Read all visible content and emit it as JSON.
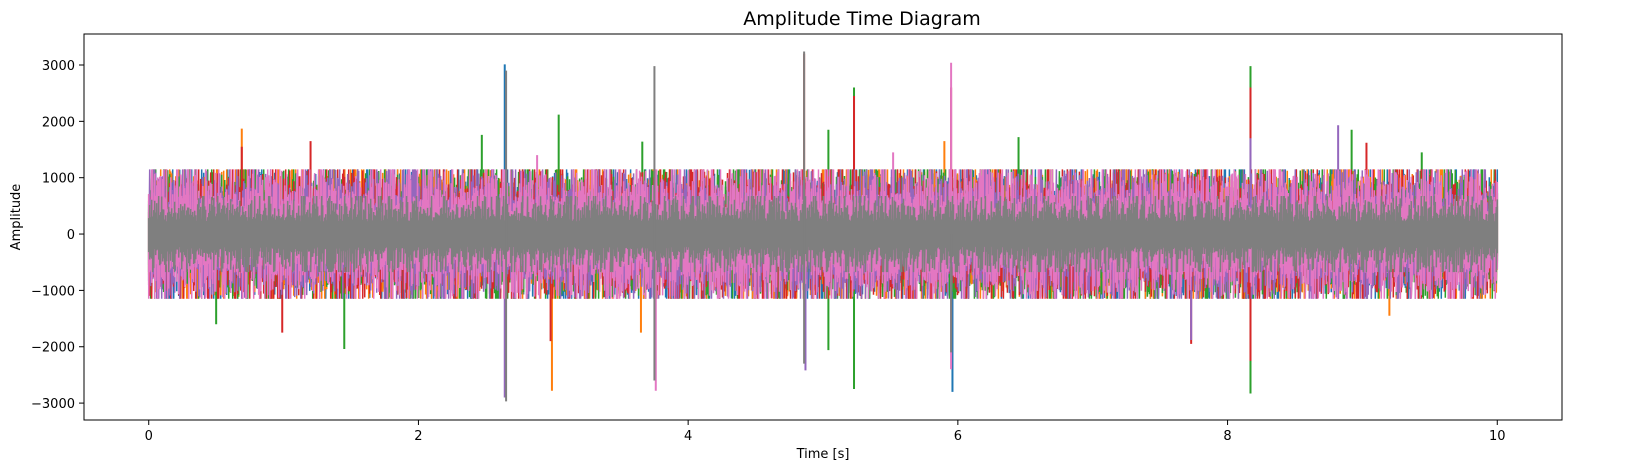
{
  "chart_data": {
    "type": "line",
    "title": "Amplitude Time Diagram",
    "xlabel": "Time [s]",
    "ylabel": "Amplitude",
    "xlim": [
      -0.48,
      10.48
    ],
    "ylim": [
      -3300,
      3550
    ],
    "xticks": [
      0,
      2,
      4,
      6,
      8,
      10
    ],
    "xtick_labels": [
      "0",
      "2",
      "4",
      "6",
      "8",
      "10"
    ],
    "yticks": [
      -3000,
      -2000,
      -1000,
      0,
      1000,
      2000,
      3000
    ],
    "ytick_labels": [
      "−3000",
      "−2000",
      "−1000",
      "0",
      "1000",
      "2000",
      "3000"
    ],
    "grid": false,
    "legend": "none",
    "x_range": [
      0,
      10
    ],
    "envelope": {
      "typical_positive_peak": 850,
      "typical_negative_peak": -850,
      "dense_core": 500
    },
    "series": [
      {
        "color": "#1f77b4",
        "spikes": [
          {
            "x": 2.64,
            "y": 3010
          },
          {
            "x": 5.96,
            "y": -2800
          }
        ]
      },
      {
        "color": "#ff7f0e",
        "spikes": [
          {
            "x": 0.69,
            "y": 1870
          },
          {
            "x": 2.99,
            "y": -2780
          },
          {
            "x": 3.65,
            "y": -1750
          },
          {
            "x": 5.9,
            "y": 1650
          },
          {
            "x": 9.2,
            "y": -1450
          }
        ]
      },
      {
        "color": "#2ca02c",
        "spikes": [
          {
            "x": 0.5,
            "y": -1600
          },
          {
            "x": 1.45,
            "y": -2040
          },
          {
            "x": 2.47,
            "y": 1760
          },
          {
            "x": 3.04,
            "y": 2120
          },
          {
            "x": 3.66,
            "y": 1640
          },
          {
            "x": 5.04,
            "y": 1850
          },
          {
            "x": 5.04,
            "y": -2060
          },
          {
            "x": 5.23,
            "y": 2600
          },
          {
            "x": 5.23,
            "y": -2750
          },
          {
            "x": 6.45,
            "y": 1720
          },
          {
            "x": 8.17,
            "y": 2980
          },
          {
            "x": 8.17,
            "y": -2830
          },
          {
            "x": 8.92,
            "y": 1850
          },
          {
            "x": 9.44,
            "y": 1450
          }
        ]
      },
      {
        "color": "#d62728",
        "spikes": [
          {
            "x": 0.69,
            "y": 1550
          },
          {
            "x": 0.99,
            "y": -1750
          },
          {
            "x": 1.2,
            "y": 1650
          },
          {
            "x": 2.98,
            "y": -1900
          },
          {
            "x": 4.86,
            "y": 3200
          },
          {
            "x": 5.23,
            "y": 2450
          },
          {
            "x": 5.95,
            "y": 2600
          },
          {
            "x": 7.73,
            "y": -1950
          },
          {
            "x": 8.17,
            "y": 2600
          },
          {
            "x": 8.17,
            "y": -2250
          },
          {
            "x": 9.03,
            "y": 1620
          }
        ]
      },
      {
        "color": "#9467bd",
        "spikes": [
          {
            "x": 2.64,
            "y": -2900
          },
          {
            "x": 4.87,
            "y": -2420
          },
          {
            "x": 7.73,
            "y": -1880
          },
          {
            "x": 8.82,
            "y": 1930
          },
          {
            "x": 8.17,
            "y": 1700
          }
        ]
      },
      {
        "color": "#e377c2",
        "spikes": [
          {
            "x": 3.76,
            "y": -2780
          },
          {
            "x": 5.95,
            "y": 3040
          },
          {
            "x": 5.95,
            "y": -2400
          },
          {
            "x": 5.52,
            "y": 1450
          },
          {
            "x": 2.88,
            "y": 1400
          }
        ]
      },
      {
        "color": "#7f7f7f",
        "spikes": [
          {
            "x": 2.65,
            "y": 2900
          },
          {
            "x": 2.65,
            "y": -2970
          },
          {
            "x": 3.75,
            "y": 2980
          },
          {
            "x": 3.75,
            "y": -2600
          },
          {
            "x": 4.86,
            "y": 3240
          },
          {
            "x": 4.86,
            "y": -2300
          },
          {
            "x": 5.95,
            "y": -2100
          }
        ]
      }
    ]
  }
}
